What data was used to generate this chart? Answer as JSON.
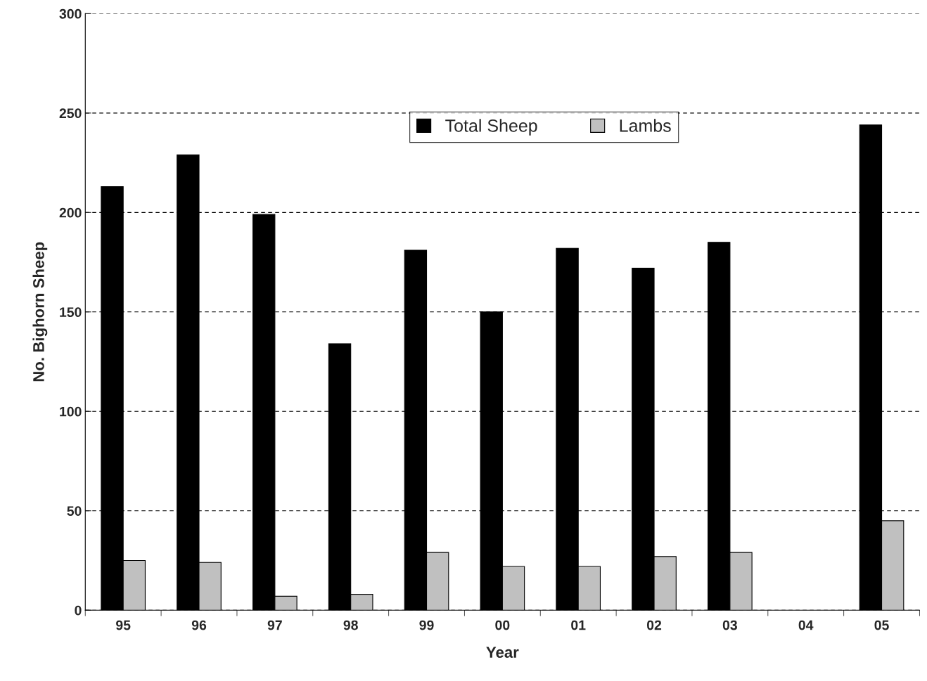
{
  "chart_data": {
    "type": "bar",
    "xlabel": "Year",
    "ylabel": "No. Bighorn Sheep",
    "categories": [
      "95",
      "96",
      "97",
      "98",
      "99",
      "00",
      "01",
      "02",
      "03",
      "04",
      "05"
    ],
    "series": [
      {
        "name": "Total Sheep",
        "color": "#000000",
        "values": [
          213,
          229,
          199,
          134,
          181,
          150,
          182,
          172,
          185,
          null,
          244
        ]
      },
      {
        "name": "Lambs",
        "color": "#c0c0c0",
        "values": [
          25,
          24,
          7,
          8,
          29,
          22,
          22,
          27,
          29,
          null,
          45
        ]
      }
    ],
    "ylim": [
      0,
      300
    ],
    "yticks": [
      0,
      50,
      100,
      150,
      200,
      250,
      300
    ],
    "grid": "y",
    "legend": "top"
  }
}
